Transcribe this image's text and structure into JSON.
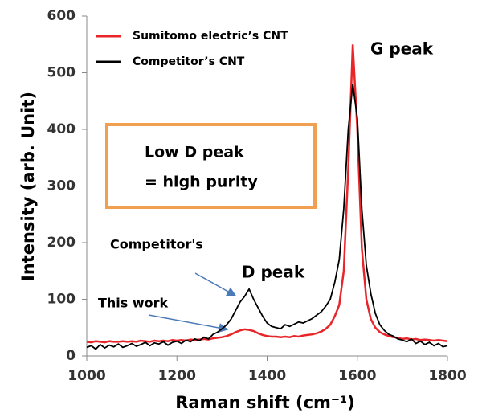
{
  "chart_data": {
    "type": "line",
    "xlabel": "Raman shift (cm⁻¹)",
    "ylabel": "Intensity (arb. Unit)",
    "x": [
      1000,
      1010,
      1020,
      1030,
      1040,
      1050,
      1060,
      1070,
      1080,
      1090,
      1100,
      1110,
      1120,
      1130,
      1140,
      1150,
      1160,
      1170,
      1180,
      1190,
      1200,
      1210,
      1220,
      1230,
      1240,
      1250,
      1260,
      1270,
      1280,
      1290,
      1300,
      1310,
      1320,
      1330,
      1340,
      1350,
      1360,
      1370,
      1380,
      1390,
      1400,
      1410,
      1420,
      1430,
      1440,
      1450,
      1460,
      1470,
      1480,
      1490,
      1500,
      1510,
      1520,
      1530,
      1540,
      1550,
      1560,
      1570,
      1580,
      1590,
      1600,
      1610,
      1620,
      1630,
      1640,
      1650,
      1660,
      1670,
      1680,
      1690,
      1700,
      1710,
      1720,
      1730,
      1740,
      1750,
      1760,
      1770,
      1780,
      1790,
      1800
    ],
    "series": [
      {
        "name": "Sumitomo electric’s CNT",
        "color": "#e8262a",
        "values": [
          25,
          24,
          26,
          25,
          24,
          26,
          25,
          25,
          26,
          25,
          26,
          25,
          27,
          26,
          25,
          27,
          26,
          27,
          26,
          28,
          27,
          28,
          27,
          29,
          28,
          29,
          30,
          29,
          31,
          32,
          33,
          35,
          38,
          42,
          45,
          47,
          46,
          44,
          40,
          37,
          35,
          34,
          34,
          33,
          34,
          33,
          35,
          34,
          36,
          37,
          38,
          40,
          43,
          48,
          55,
          70,
          90,
          150,
          330,
          550,
          400,
          190,
          100,
          65,
          50,
          42,
          38,
          35,
          33,
          32,
          30,
          31,
          29,
          30,
          28,
          29,
          28,
          27,
          28,
          27,
          26
        ]
      },
      {
        "name": "Competitor’s CNT",
        "color": "#000000",
        "values": [
          15,
          18,
          12,
          20,
          14,
          19,
          16,
          21,
          15,
          18,
          22,
          17,
          20,
          24,
          18,
          23,
          21,
          25,
          19,
          24,
          26,
          22,
          28,
          25,
          30,
          27,
          33,
          30,
          38,
          42,
          48,
          55,
          65,
          80,
          95,
          105,
          118,
          100,
          85,
          70,
          58,
          52,
          50,
          48,
          55,
          52,
          56,
          60,
          58,
          62,
          66,
          72,
          78,
          88,
          100,
          130,
          170,
          260,
          400,
          480,
          420,
          260,
          160,
          110,
          75,
          55,
          45,
          38,
          35,
          30,
          28,
          25,
          30,
          22,
          26,
          20,
          24,
          18,
          22,
          16,
          18
        ]
      }
    ],
    "xlim": [
      1000,
      1800
    ],
    "xticks": [
      1000,
      1200,
      1400,
      1600,
      1800
    ],
    "ylim": [
      0,
      600
    ],
    "yticks": [
      0,
      100,
      200,
      300,
      400,
      500,
      600
    ],
    "grid": false,
    "legend": "upper left",
    "annotations": [
      "G peak",
      "D peak",
      "Competitor's",
      "This work",
      "Low D peak",
      "= high purity"
    ]
  }
}
